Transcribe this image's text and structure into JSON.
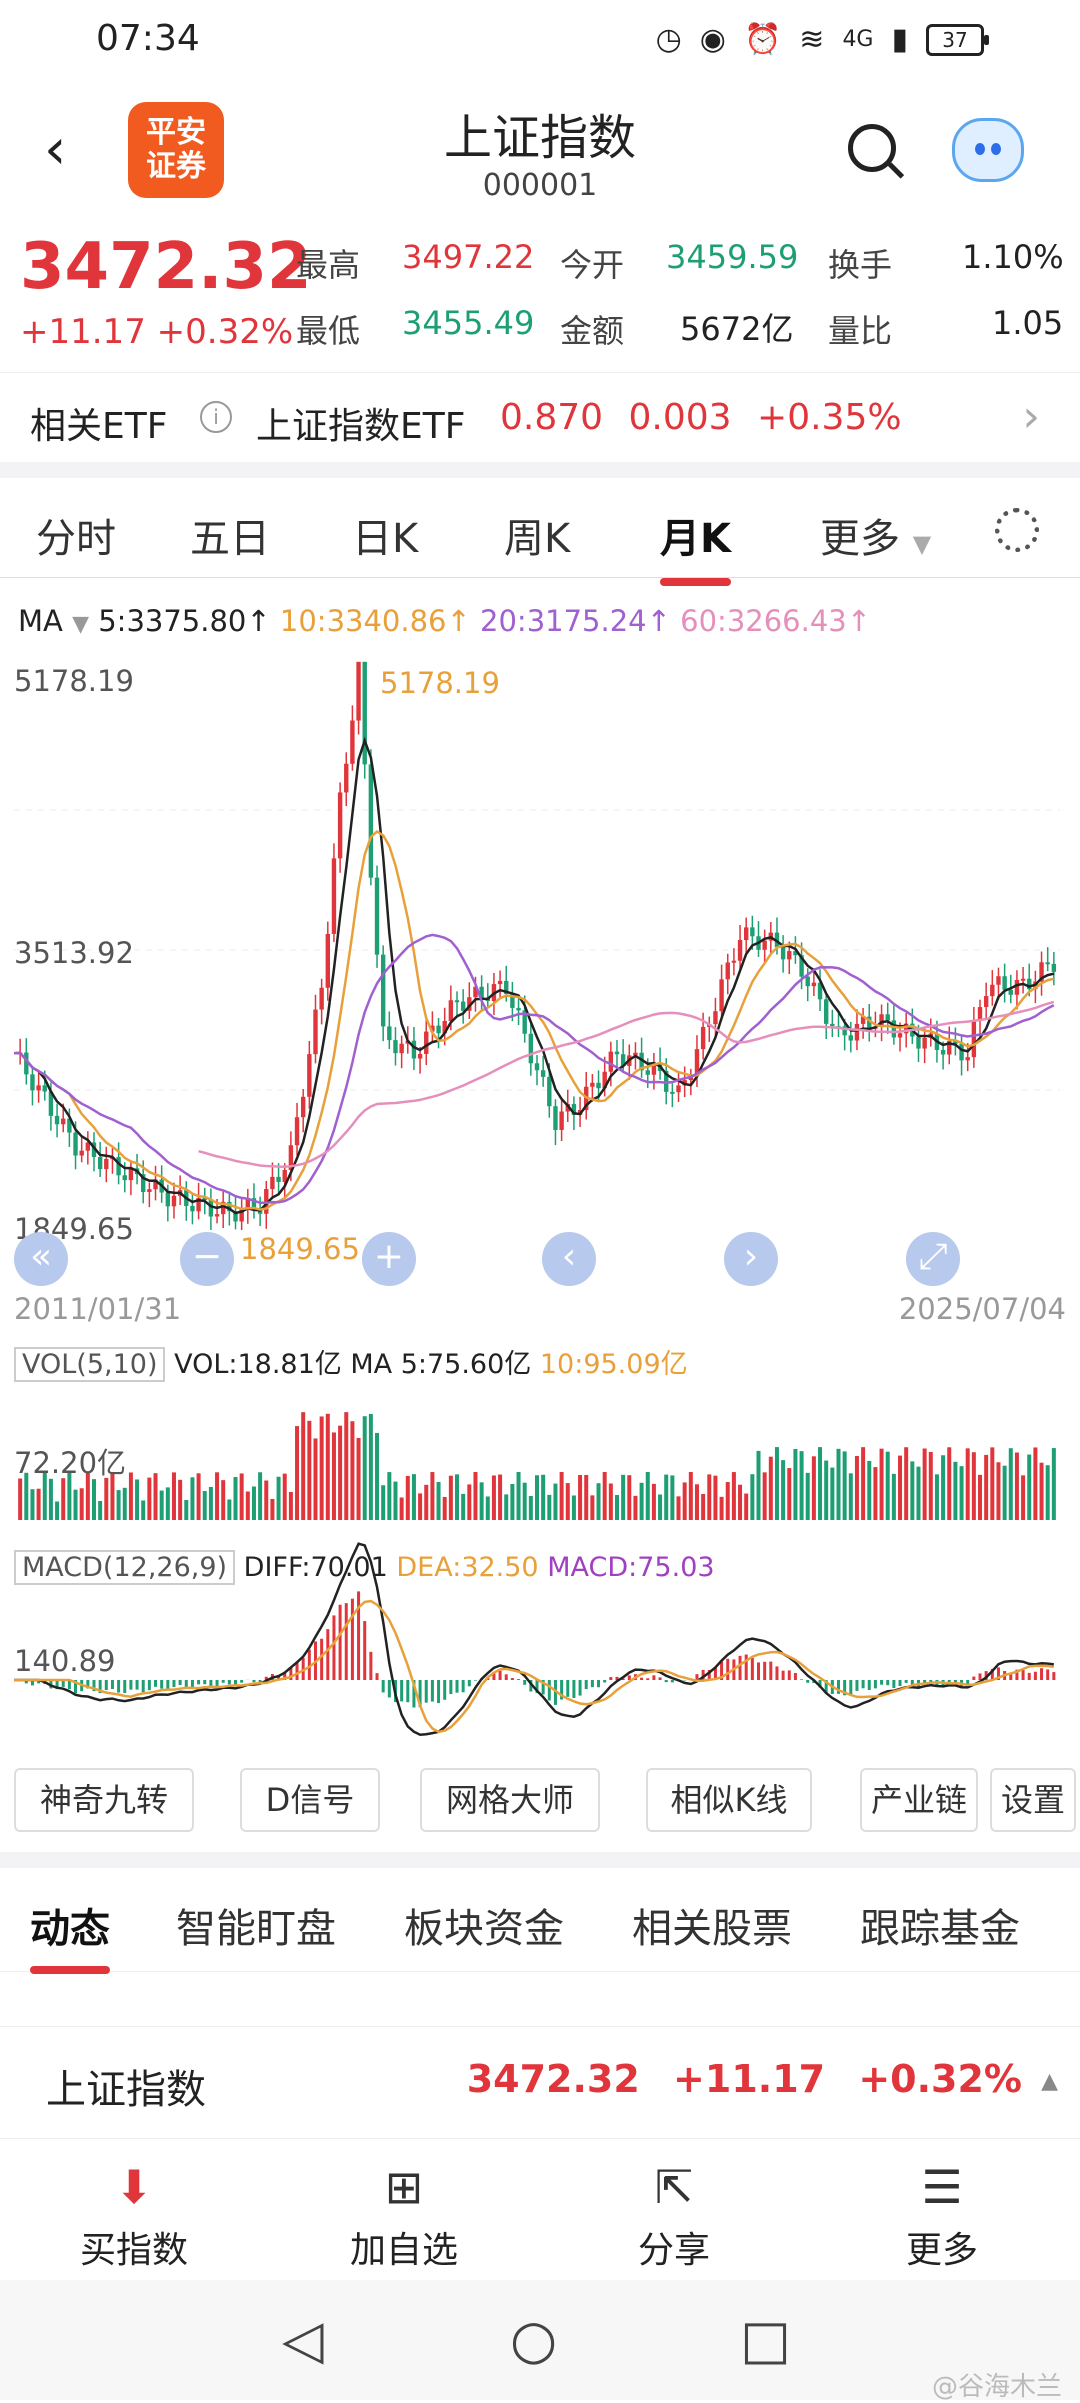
{
  "status": {
    "time": "07:34",
    "battery": "37",
    "network": "4G"
  },
  "header": {
    "title": "上证指数",
    "code": "000001",
    "logo_text": "平安\n证券",
    "back_icon": "back-chevron-icon"
  },
  "quote": {
    "price": "3472.32",
    "change": "+11.17",
    "change_pct": "+0.32%",
    "high_label": "最高",
    "high": "3497.22",
    "low_label": "最低",
    "low": "3455.49",
    "open_label": "今开",
    "open": "3459.59",
    "amount_label": "金额",
    "amount": "5672亿",
    "turnover_label": "换手",
    "turnover": "1.10%",
    "vol_ratio_label": "量比",
    "vol_ratio": "1.05"
  },
  "etf": {
    "label": "相关ETF",
    "info_icon": "i",
    "name": "上证指数ETF",
    "price": "0.870",
    "change": "0.003",
    "pct": "+0.35%"
  },
  "tabs": [
    "分时",
    "五日",
    "日K",
    "周K",
    "月K",
    "更多"
  ],
  "ma_line": {
    "prefix": "MA",
    "ma5": "5:3375.80↑",
    "ma10": "10:3340.86↑",
    "ma20": "20:3175.24↑",
    "ma60": "60:3266.43↑"
  },
  "chart": {
    "y_top": "5178.19",
    "y_mid": "3513.92",
    "y_bottom": "1849.65",
    "max_label": "5178.19",
    "min_label": "1849.65",
    "date_start": "2011/01/31",
    "date_end": "2025/07/04",
    "vol_selector": "VOL(5,10)",
    "vol_text": "VOL:18.81亿",
    "vol_ma5": "MA 5:75.60亿",
    "vol_ma10": "10:95.09亿",
    "vol_axis": "72.20亿",
    "macd_selector": "MACD(12,26,9)",
    "diff": "DIFF:70.01",
    "dea": "DEA:32.50",
    "macd": "MACD:75.03",
    "macd_axis": "140.89"
  },
  "chart_data": {
    "type": "candlestick",
    "ylim": [
      1849.65,
      5178.19
    ],
    "x_range": [
      "2011/01/31",
      "2025/07/04"
    ],
    "annotations": [
      "5178.19",
      "1849.65"
    ],
    "colors": {
      "up": "#e0353b",
      "down": "#1d9f73",
      "ma5": "#222",
      "ma10": "#e8a03a",
      "ma20": "#a060d0",
      "ma60": "#e58fbc"
    }
  },
  "tools": [
    "神奇九转",
    "D信号",
    "网格大师",
    "相似K线",
    "产业链",
    "设置"
  ],
  "subtabs": [
    "动态",
    "智能盯盘",
    "板块资金",
    "相关股票",
    "跟踪基金"
  ],
  "stock_row": {
    "name": "上证指数",
    "price": "3472.32",
    "change": "+11.17",
    "pct": "+0.32%"
  },
  "bottom_nav": [
    {
      "icon": "download-icon",
      "label": "买指数"
    },
    {
      "icon": "plus-box-icon",
      "label": "加自选"
    },
    {
      "icon": "share-icon",
      "label": "分享"
    },
    {
      "icon": "menu-icon",
      "label": "更多"
    }
  ],
  "watermark": "@谷海木兰"
}
